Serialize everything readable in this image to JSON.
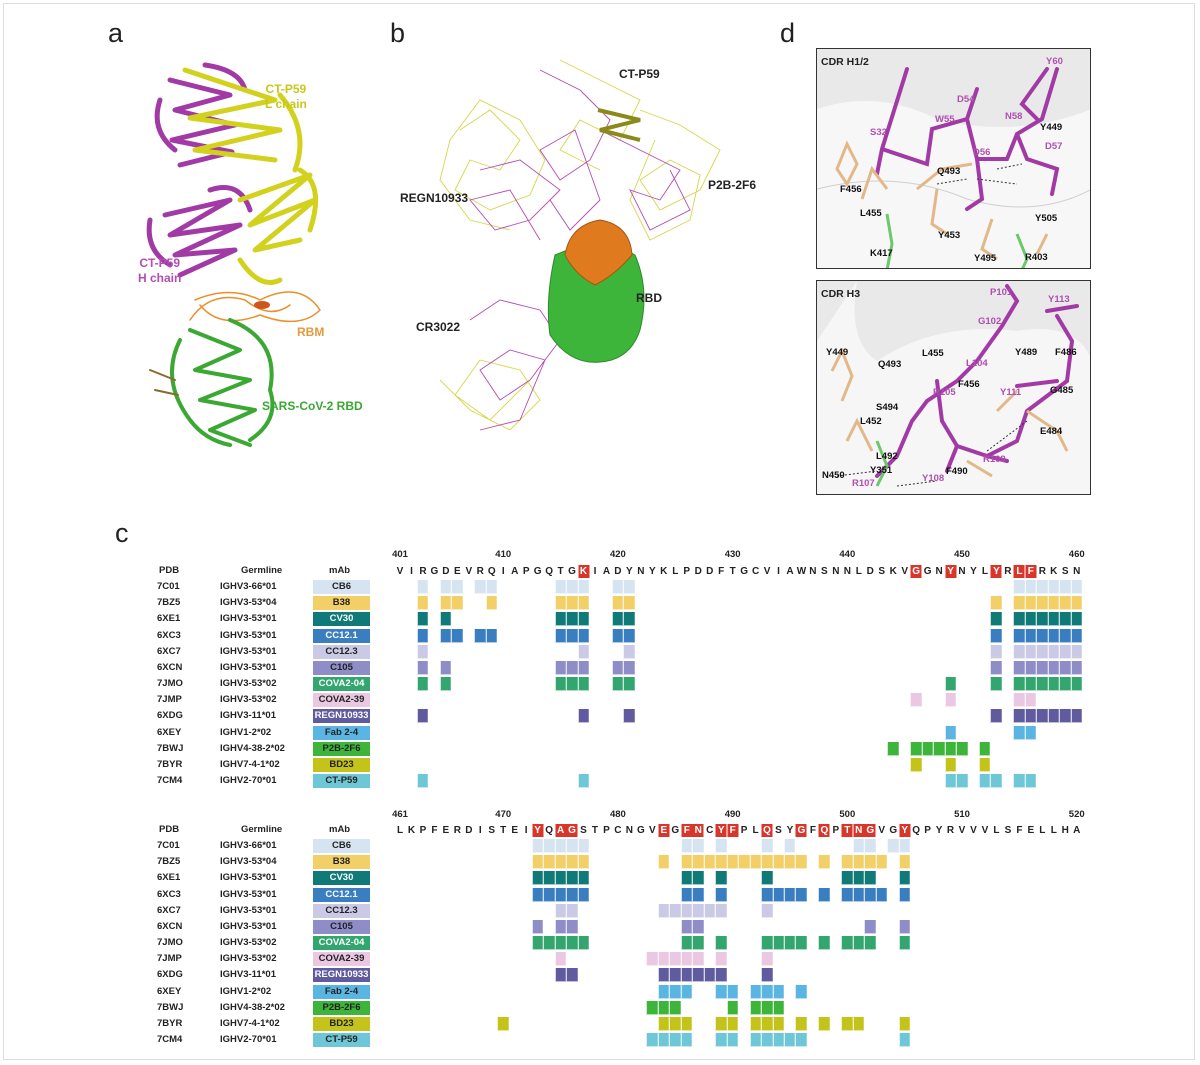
{
  "panels": {
    "a": {
      "letter": "a",
      "l_chain": "CT-P59\nL chain",
      "h_chain": "CT-P59\nH chain",
      "rbm": "RBM",
      "rbd": "SARS-CoV-2 RBD"
    },
    "b": {
      "letter": "b",
      "ctp59": "CT-P59",
      "regn": "REGN10933",
      "p2b": "P2B-2F6",
      "cr3022": "CR3022",
      "rbd": "RBD"
    },
    "c": {
      "letter": "c"
    },
    "d": {
      "letter": "d",
      "top": {
        "title": "CDR H1/2",
        "labels": [
          {
            "t": "Y60",
            "kind": "ab"
          },
          {
            "t": "D54",
            "kind": "ab"
          },
          {
            "t": "W55",
            "kind": "ab"
          },
          {
            "t": "N58",
            "kind": "ab"
          },
          {
            "t": "S32",
            "kind": "ab"
          },
          {
            "t": "Y449",
            "kind": "rbd"
          },
          {
            "t": "D56",
            "kind": "ab"
          },
          {
            "t": "D57",
            "kind": "ab"
          },
          {
            "t": "Q493",
            "kind": "rbd"
          },
          {
            "t": "F456",
            "kind": "rbd"
          },
          {
            "t": "L455",
            "kind": "rbd"
          },
          {
            "t": "Y505",
            "kind": "rbd"
          },
          {
            "t": "Y453",
            "kind": "rbd"
          },
          {
            "t": "K417",
            "kind": "rbd"
          },
          {
            "t": "Y495",
            "kind": "rbd"
          },
          {
            "t": "R403",
            "kind": "rbd"
          }
        ]
      },
      "bottom": {
        "title": "CDR H3",
        "labels": [
          {
            "t": "P101",
            "kind": "ab"
          },
          {
            "t": "Y113",
            "kind": "ab"
          },
          {
            "t": "G102",
            "kind": "ab"
          },
          {
            "t": "Y449",
            "kind": "rbd"
          },
          {
            "t": "L455",
            "kind": "rbd"
          },
          {
            "t": "Q493",
            "kind": "rbd"
          },
          {
            "t": "L104",
            "kind": "ab"
          },
          {
            "t": "Y489",
            "kind": "rbd"
          },
          {
            "t": "F486",
            "kind": "rbd"
          },
          {
            "t": "F456",
            "kind": "rbd"
          },
          {
            "t": "R105",
            "kind": "ab"
          },
          {
            "t": "Y111",
            "kind": "ab"
          },
          {
            "t": "G485",
            "kind": "rbd"
          },
          {
            "t": "S494",
            "kind": "rbd"
          },
          {
            "t": "L452",
            "kind": "rbd"
          },
          {
            "t": "E484",
            "kind": "rbd"
          },
          {
            "t": "L492",
            "kind": "rbd"
          },
          {
            "t": "R109",
            "kind": "ab"
          },
          {
            "t": "Y351",
            "kind": "rbd"
          },
          {
            "t": "F490",
            "kind": "rbd"
          },
          {
            "t": "N450",
            "kind": "rbd"
          },
          {
            "t": "R107",
            "kind": "ab"
          },
          {
            "t": "Y108",
            "kind": "ab"
          }
        ]
      }
    }
  },
  "colors": {
    "antibody": "#a23aa6",
    "l_chain": "#d2d21e",
    "rbm": "#e8902a",
    "rbd": "#3aa832",
    "highlight": "#d9362b",
    "rbd_label": "#111111"
  },
  "table": {
    "headers": {
      "pdb": "PDB",
      "germline": "Germline",
      "mab": "mAb"
    },
    "rows": [
      {
        "pdb": "7C01",
        "germline": "IGHV3-66*01",
        "mab": "CB6",
        "color": "#d6e4f1",
        "dark": false,
        "contacts1": [
          403,
          405,
          406,
          408,
          409,
          415,
          416,
          417,
          420,
          421,
          455,
          456,
          457,
          458,
          459,
          460
        ],
        "contacts2": [
          473,
          474,
          475,
          476,
          477,
          486,
          487,
          489,
          493,
          495,
          501,
          502,
          504,
          505
        ]
      },
      {
        "pdb": "7BZ5",
        "germline": "IGHV3-53*04",
        "mab": "B38",
        "color": "#f3cf68",
        "dark": false,
        "contacts1": [
          403,
          405,
          406,
          409,
          415,
          416,
          417,
          420,
          421,
          453,
          455,
          456,
          457,
          458,
          459,
          460
        ],
        "contacts2": [
          473,
          474,
          475,
          476,
          477,
          484,
          486,
          487,
          488,
          489,
          490,
          491,
          492,
          493,
          494,
          495,
          496,
          498,
          500,
          501,
          502,
          503,
          505
        ]
      },
      {
        "pdb": "6XE1",
        "germline": "IGHV3-53*01",
        "mab": "CV30",
        "color": "#0f7a78",
        "dark": true,
        "contacts1": [
          403,
          405,
          415,
          416,
          417,
          420,
          421,
          453,
          455,
          456,
          457,
          458,
          459,
          460
        ],
        "contacts2": [
          473,
          474,
          475,
          476,
          477,
          486,
          487,
          489,
          493,
          500,
          501,
          502,
          505
        ]
      },
      {
        "pdb": "6XC3",
        "germline": "IGHV3-53*01",
        "mab": "CC12.1",
        "color": "#3a7ec2",
        "dark": true,
        "contacts1": [
          403,
          405,
          406,
          408,
          409,
          415,
          416,
          417,
          420,
          421,
          453,
          455,
          456,
          457,
          458,
          459,
          460
        ],
        "contacts2": [
          473,
          474,
          475,
          476,
          477,
          486,
          487,
          489,
          493,
          494,
          495,
          496,
          498,
          500,
          501,
          502,
          503,
          505
        ]
      },
      {
        "pdb": "6XC7",
        "germline": "IGHV3-53*01",
        "mab": "CC12.3",
        "color": "#cac9e6",
        "dark": false,
        "contacts1": [
          403,
          417,
          421,
          453,
          455,
          456,
          457,
          458,
          459,
          460
        ],
        "contacts2": [
          475,
          476,
          484,
          485,
          486,
          487,
          488,
          489,
          493
        ]
      },
      {
        "pdb": "6XCN",
        "germline": "IGHV3-53*01",
        "mab": "C105",
        "color": "#8f8dc8",
        "dark": false,
        "contacts1": [
          403,
          405,
          415,
          416,
          417,
          420,
          421,
          453,
          455,
          456,
          457,
          458,
          459,
          460
        ],
        "contacts2": [
          473,
          475,
          476,
          486,
          487,
          502,
          505
        ]
      },
      {
        "pdb": "7JMO",
        "germline": "IGHV3-53*02",
        "mab": "COVA2-04",
        "color": "#33a66f",
        "dark": true,
        "contacts1": [
          403,
          405,
          415,
          416,
          417,
          420,
          421,
          449,
          453,
          455,
          456,
          457,
          458,
          459,
          460
        ],
        "contacts2": [
          473,
          474,
          475,
          476,
          477,
          486,
          487,
          489,
          493,
          494,
          495,
          496,
          498,
          500,
          501,
          502,
          505
        ]
      },
      {
        "pdb": "7JMP",
        "germline": "IGHV3-53*02",
        "mab": "COVA2-39",
        "color": "#ebc8e2",
        "dark": false,
        "contacts1": [
          446,
          449,
          455,
          456
        ],
        "contacts2": [
          475,
          483,
          484,
          485,
          486,
          487,
          489,
          493
        ]
      },
      {
        "pdb": "6XDG",
        "germline": "IGHV3-11*01",
        "mab": "REGN10933",
        "color": "#5f5b9e",
        "dark": true,
        "contacts1": [
          403,
          417,
          421,
          453,
          455,
          456,
          457,
          458,
          459,
          460
        ],
        "contacts2": [
          475,
          476,
          484,
          485,
          486,
          487,
          488,
          489,
          493
        ]
      },
      {
        "pdb": "6XEY",
        "germline": "IGHV1-2*02",
        "mab": "Fab 2-4",
        "color": "#5bb5e2",
        "dark": false,
        "contacts1": [
          449,
          455,
          456
        ],
        "contacts2": [
          484,
          485,
          486,
          489,
          490,
          492,
          493,
          494,
          496
        ]
      },
      {
        "pdb": "7BWJ",
        "germline": "IGHV4-38-2*02",
        "mab": "P2B-2F6",
        "color": "#3db53b",
        "dark": false,
        "contacts1": [
          444,
          446,
          447,
          448,
          449,
          450,
          452
        ],
        "contacts2": [
          483,
          484,
          485,
          490,
          492,
          493,
          494
        ]
      },
      {
        "pdb": "7BYR",
        "germline": "IGHV7-4-1*02",
        "mab": "BD23",
        "color": "#c4c31a",
        "dark": false,
        "contacts1": [
          446,
          449,
          452
        ],
        "contacts2": [
          470,
          484,
          485,
          486,
          489,
          490,
          492,
          493,
          494,
          496,
          498,
          500,
          501,
          505
        ]
      },
      {
        "pdb": "7CM4",
        "germline": "IGHV2-70*01",
        "mab": "CT-P59",
        "color": "#6dc7d6",
        "dark": false,
        "contacts1": [
          403,
          417,
          449,
          450,
          452,
          453,
          455,
          456
        ],
        "contacts2": [
          483,
          484,
          485,
          486,
          489,
          490,
          492,
          493,
          494,
          495,
          496,
          505
        ]
      }
    ],
    "blocks": [
      {
        "start": 401,
        "sequence": "VIRGDEVRQIAPGQTGKIADYNYKLPDDFTGCVIAWNSNNLDSKVGGNYNYLYRLFRKSN",
        "ticks": [
          "401",
          "410",
          "420",
          "430",
          "440",
          "450",
          "460"
        ],
        "highlighted": [
          417,
          446,
          449,
          453,
          455,
          456
        ]
      },
      {
        "start": 461,
        "sequence": "LKPFERDISTEIYQAGSTPCNGVEGFNCYFPLQSYGFQPTNGVGYQPYRVVVLSFELLHA",
        "ticks": [
          "461",
          "470",
          "480",
          "490",
          "500",
          "510",
          "520"
        ],
        "highlighted": [
          473,
          475,
          476,
          484,
          486,
          487,
          489,
          490,
          493,
          496,
          498,
          500,
          501,
          502,
          505
        ]
      }
    ]
  }
}
